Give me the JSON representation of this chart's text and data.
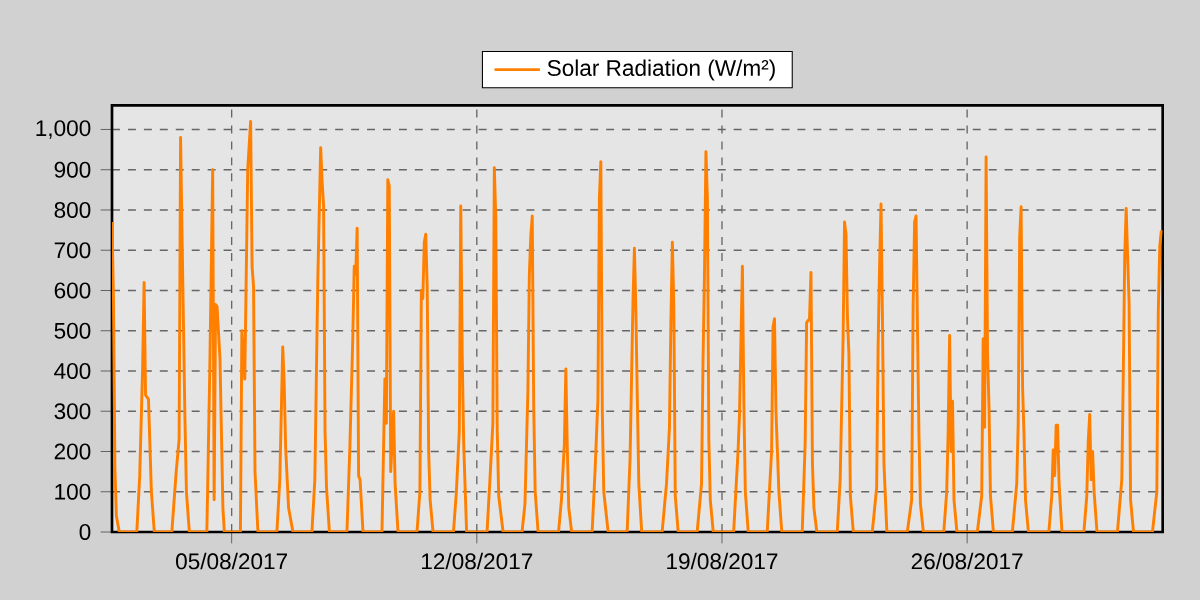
{
  "chart_data": {
    "type": "line",
    "xlim": [
      "2017-08-01T14:00",
      "2017-08-31T14:00"
    ],
    "xticks": [
      {
        "value": "2017-08-05",
        "label": "05/08/2017"
      },
      {
        "value": "2017-08-12",
        "label": "12/08/2017"
      },
      {
        "value": "2017-08-19",
        "label": "19/08/2017"
      },
      {
        "value": "2017-08-26",
        "label": "26/08/2017"
      }
    ],
    "ylim": [
      0,
      1060
    ],
    "yticks": [
      0,
      100,
      200,
      300,
      400,
      500,
      600,
      700,
      800,
      900,
      {
        "value": 1000,
        "label": "1,000"
      }
    ],
    "grid": true,
    "legend": "top",
    "marker": "none",
    "line_style": "solid",
    "series": [
      {
        "name": "Solar Radiation (W/m²)",
        "color": "#ff8000",
        "x": [
          "2017-08-01T14:00",
          "2017-08-01T15:00",
          "2017-08-01T16:00",
          "2017-08-01T17:00",
          "2017-08-01T19:00",
          "2017-08-02T07:00",
          "2017-08-02T09:00",
          "2017-08-02T11:00",
          "2017-08-02T12:00",
          "2017-08-02T13:00",
          "2017-08-02T15:00",
          "2017-08-02T17:00",
          "2017-08-02T19:00",
          "2017-08-03T07:00",
          "2017-08-03T10:00",
          "2017-08-03T12:00",
          "2017-08-03T13:00",
          "2017-08-03T14:00",
          "2017-08-03T16:00",
          "2017-08-03T17:00",
          "2017-08-03T19:00",
          "2017-08-04T07:00",
          "2017-08-04T09:00",
          "2017-08-04T11:00",
          "2017-08-04T12:00",
          "2017-08-04T13:00",
          "2017-08-04T14:00",
          "2017-08-04T16:00",
          "2017-08-04T18:00",
          "2017-08-04T19:00",
          "2017-08-05T06:00",
          "2017-08-05T07:00",
          "2017-08-05T09:00",
          "2017-08-05T11:00",
          "2017-08-05T13:00",
          "2017-08-05T14:00",
          "2017-08-05T15:00",
          "2017-08-05T16:00",
          "2017-08-05T18:00",
          "2017-08-06T07:00",
          "2017-08-06T09:00",
          "2017-08-06T11:00",
          "2017-08-06T12:00",
          "2017-08-06T13:00",
          "2017-08-06T15:00",
          "2017-08-06T18:00",
          "2017-08-07T07:00",
          "2017-08-07T09:00",
          "2017-08-07T11:00",
          "2017-08-07T13:00",
          "2017-08-07T14:00",
          "2017-08-07T15:00",
          "2017-08-07T16:00",
          "2017-08-07T17:00",
          "2017-08-07T19:00",
          "2017-08-08T07:00",
          "2017-08-08T09:00",
          "2017-08-08T11:00",
          "2017-08-08T12:00",
          "2017-08-08T13:00",
          "2017-08-08T14:00",
          "2017-08-08T15:00",
          "2017-08-08T16:00",
          "2017-08-08T18:00",
          "2017-08-09T07:00",
          "2017-08-09T09:00",
          "2017-08-09T10:00",
          "2017-08-09T11:00",
          "2017-08-09T12:00",
          "2017-08-09T13:00",
          "2017-08-09T15:00",
          "2017-08-09T16:00",
          "2017-08-09T18:00",
          "2017-08-10T07:00",
          "2017-08-10T09:00",
          "2017-08-10T10:00",
          "2017-08-10T11:00",
          "2017-08-10T12:00",
          "2017-08-10T13:00",
          "2017-08-10T14:00",
          "2017-08-10T15:00",
          "2017-08-10T16:00",
          "2017-08-10T18:00",
          "2017-08-11T08:00",
          "2017-08-11T10:00",
          "2017-08-11T12:00",
          "2017-08-11T13:00",
          "2017-08-11T14:00",
          "2017-08-11T15:00",
          "2017-08-11T17:00",
          "2017-08-12T07:00",
          "2017-08-12T09:00",
          "2017-08-12T11:00",
          "2017-08-12T12:00",
          "2017-08-12T13:00",
          "2017-08-12T14:00",
          "2017-08-12T15:00",
          "2017-08-12T18:00",
          "2017-08-13T07:00",
          "2017-08-13T09:00",
          "2017-08-13T11:00",
          "2017-08-13T12:00",
          "2017-08-13T13:00",
          "2017-08-13T14:00",
          "2017-08-13T15:00",
          "2017-08-13T16:00",
          "2017-08-13T18:00",
          "2017-08-14T08:00",
          "2017-08-14T10:00",
          "2017-08-14T12:00",
          "2017-08-14T13:00",
          "2017-08-14T14:00",
          "2017-08-14T15:00",
          "2017-08-14T17:00",
          "2017-08-15T07:00",
          "2017-08-15T09:00",
          "2017-08-15T11:00",
          "2017-08-15T12:00",
          "2017-08-15T13:00",
          "2017-08-15T14:00",
          "2017-08-15T15:00",
          "2017-08-15T18:00",
          "2017-08-16T07:00",
          "2017-08-16T09:00",
          "2017-08-16T11:00",
          "2017-08-16T12:00",
          "2017-08-16T13:00",
          "2017-08-16T14:00",
          "2017-08-16T15:00",
          "2017-08-16T17:00",
          "2017-08-17T07:00",
          "2017-08-17T10:00",
          "2017-08-17T12:00",
          "2017-08-17T13:00",
          "2017-08-17T14:00",
          "2017-08-17T15:00",
          "2017-08-17T16:00",
          "2017-08-17T18:00",
          "2017-08-18T07:00",
          "2017-08-18T10:00",
          "2017-08-18T11:00",
          "2017-08-18T12:00",
          "2017-08-18T13:00",
          "2017-08-18T14:00",
          "2017-08-18T15:00",
          "2017-08-18T16:00",
          "2017-08-18T18:00",
          "2017-08-19T08:00",
          "2017-08-19T11:00",
          "2017-08-19T12:00",
          "2017-08-19T14:00",
          "2017-08-19T15:00",
          "2017-08-19T16:00",
          "2017-08-19T18:00",
          "2017-08-20T07:00",
          "2017-08-20T10:00",
          "2017-08-20T11:00",
          "2017-08-20T12:00",
          "2017-08-20T13:00",
          "2017-08-20T14:00",
          "2017-08-20T15:00",
          "2017-08-20T17:00",
          "2017-08-21T07:00",
          "2017-08-21T09:00",
          "2017-08-21T10:00",
          "2017-08-21T12:00",
          "2017-08-21T13:00",
          "2017-08-21T14:00",
          "2017-08-21T15:00",
          "2017-08-21T17:00",
          "2017-08-22T07:00",
          "2017-08-22T09:00",
          "2017-08-22T11:00",
          "2017-08-22T12:00",
          "2017-08-22T13:00",
          "2017-08-22T14:00",
          "2017-08-22T15:00",
          "2017-08-22T16:00",
          "2017-08-22T18:00",
          "2017-08-23T07:00",
          "2017-08-23T10:00",
          "2017-08-23T11:00",
          "2017-08-23T12:00",
          "2017-08-23T13:00",
          "2017-08-23T14:00",
          "2017-08-23T15:00",
          "2017-08-23T17:00",
          "2017-08-24T07:00",
          "2017-08-24T10:00",
          "2017-08-24T11:00",
          "2017-08-24T12:00",
          "2017-08-24T13:00",
          "2017-08-24T14:00",
          "2017-08-24T15:00",
          "2017-08-24T16:00",
          "2017-08-24T18:00",
          "2017-08-25T08:00",
          "2017-08-25T10:00",
          "2017-08-25T11:00",
          "2017-08-25T12:00",
          "2017-08-25T13:00",
          "2017-08-25T14:00",
          "2017-08-25T15:00",
          "2017-08-25T17:00",
          "2017-08-26T07:00",
          "2017-08-26T10:00",
          "2017-08-26T11:00",
          "2017-08-26T12:00",
          "2017-08-26T13:00",
          "2017-08-26T14:00",
          "2017-08-26T15:00",
          "2017-08-26T16:00",
          "2017-08-26T18:00",
          "2017-08-27T07:00",
          "2017-08-27T10:00",
          "2017-08-27T11:00",
          "2017-08-27T12:00",
          "2017-08-27T13:00",
          "2017-08-27T14:00",
          "2017-08-27T15:00",
          "2017-08-27T16:00",
          "2017-08-27T18:00",
          "2017-08-28T08:00",
          "2017-08-28T10:00",
          "2017-08-28T11:00",
          "2017-08-28T12:00",
          "2017-08-28T13:00",
          "2017-08-28T14:00",
          "2017-08-28T15:00",
          "2017-08-28T17:00",
          "2017-08-29T08:00",
          "2017-08-29T10:00",
          "2017-08-29T11:00",
          "2017-08-29T12:00",
          "2017-08-29T13:00",
          "2017-08-29T14:00",
          "2017-08-29T15:00",
          "2017-08-29T17:00",
          "2017-08-30T07:00",
          "2017-08-30T10:00",
          "2017-08-30T11:00",
          "2017-08-30T12:00",
          "2017-08-30T13:00",
          "2017-08-30T14:00",
          "2017-08-30T15:00",
          "2017-08-30T16:00",
          "2017-08-30T18:00",
          "2017-08-31T07:00",
          "2017-08-31T10:00",
          "2017-08-31T11:00",
          "2017-08-31T12:00",
          "2017-08-31T13:00",
          "2017-08-31T14:00"
        ],
        "values": [
          770,
          580,
          160,
          40,
          0,
          0,
          140,
          410,
          620,
          340,
          330,
          100,
          0,
          0,
          150,
          230,
          980,
          740,
          280,
          100,
          0,
          0,
          400,
          900,
          80,
          565,
          560,
          430,
          60,
          0,
          0,
          500,
          380,
          900,
          1020,
          660,
          610,
          150,
          0,
          0,
          130,
          460,
          370,
          210,
          60,
          0,
          0,
          130,
          620,
          955,
          870,
          810,
          250,
          110,
          0,
          0,
          210,
          480,
          660,
          640,
          755,
          140,
          130,
          0,
          0,
          380,
          270,
          875,
          860,
          150,
          300,
          120,
          0,
          0,
          100,
          600,
          580,
          720,
          740,
          610,
          200,
          80,
          0,
          0,
          100,
          250,
          810,
          440,
          220,
          0,
          0,
          130,
          270,
          905,
          780,
          250,
          90,
          0,
          0,
          70,
          350,
          640,
          735,
          785,
          310,
          100,
          0,
          0,
          80,
          220,
          405,
          210,
          60,
          0,
          0,
          150,
          330,
          830,
          920,
          300,
          100,
          0,
          0,
          180,
          570,
          705,
          550,
          330,
          120,
          0,
          0,
          120,
          260,
          520,
          720,
          560,
          90,
          0,
          0,
          120,
          420,
          640,
          945,
          830,
          230,
          80,
          0,
          0,
          200,
          290,
          660,
          320,
          100,
          0,
          0,
          200,
          510,
          530,
          300,
          200,
          100,
          0,
          0,
          220,
          520,
          530,
          645,
          170,
          60,
          0,
          0,
          130,
          480,
          770,
          740,
          530,
          440,
          90,
          0,
          0,
          110,
          460,
          660,
          815,
          520,
          170,
          0,
          0,
          80,
          560,
          770,
          785,
          500,
          240,
          70,
          0,
          0,
          100,
          250,
          488,
          200,
          325,
          80,
          0,
          0,
          90,
          480,
          260,
          932,
          440,
          310,
          90,
          0,
          0,
          120,
          270,
          733,
          808,
          360,
          240,
          80,
          0,
          0,
          90,
          204,
          140,
          265,
          265,
          120,
          0,
          0,
          90,
          226,
          292,
          130,
          200,
          100,
          0,
          0,
          130,
          390,
          686,
          804,
          680,
          568,
          80,
          0,
          0,
          100,
          548,
          710,
          746,
          746
        ]
      }
    ]
  }
}
